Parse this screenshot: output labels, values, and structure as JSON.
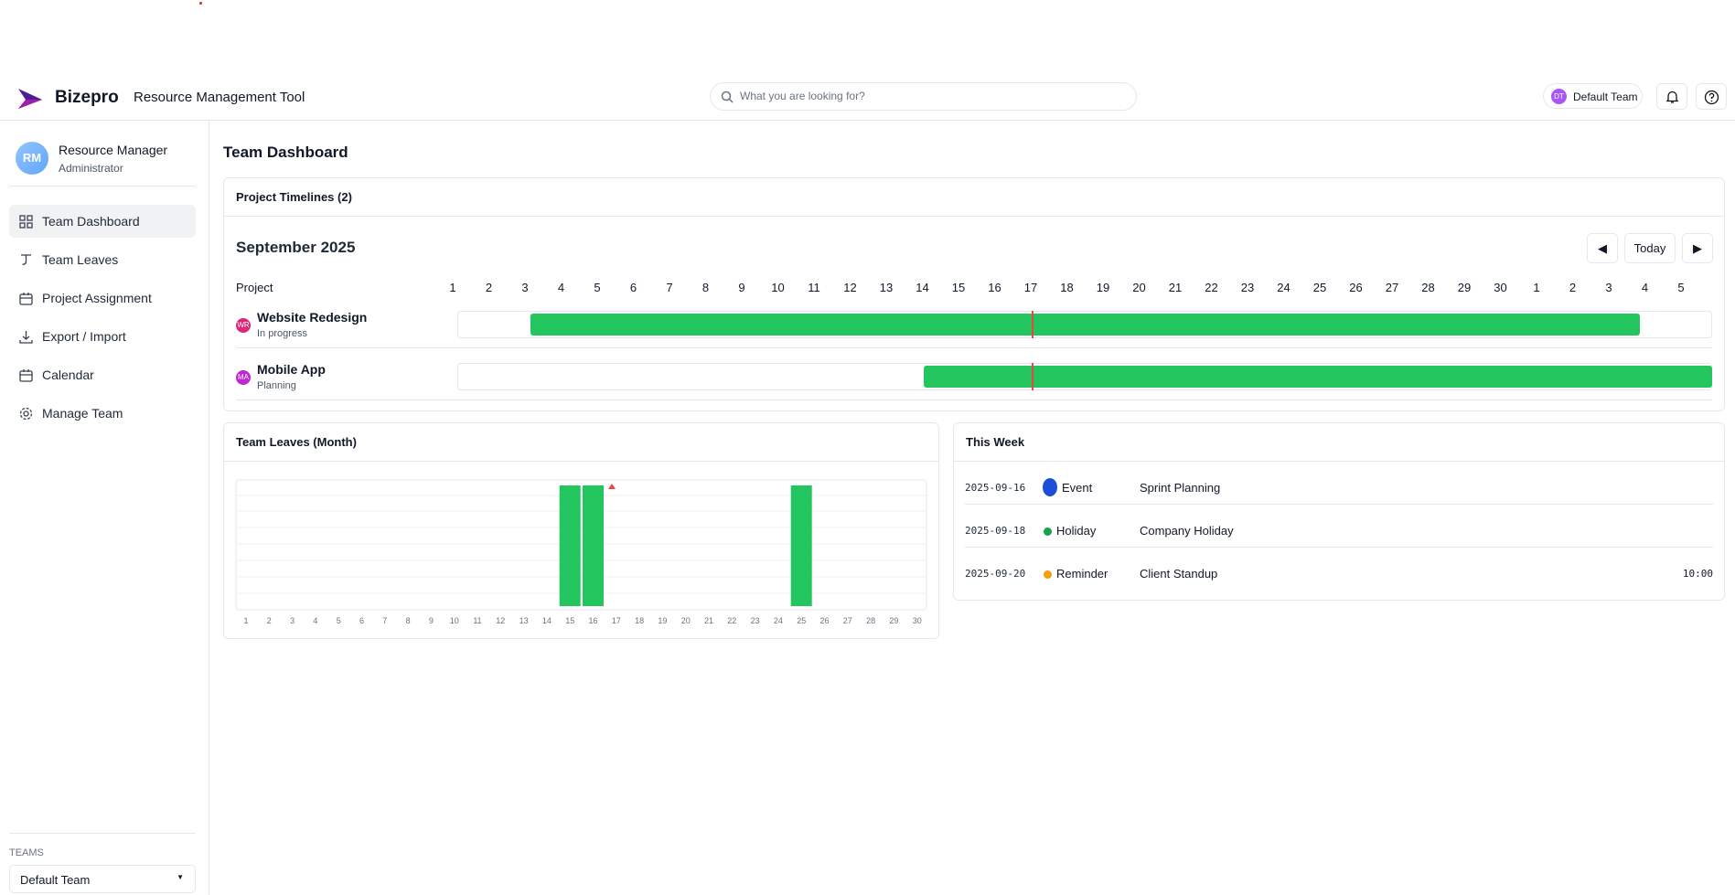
{
  "header": {
    "brand": "Bizepro",
    "app_title": "Resource Management Tool",
    "search_placeholder": "What you are looking for?",
    "team_initials": "DT",
    "team_name": "Default Team"
  },
  "sidebar": {
    "user": {
      "initials": "RM",
      "name": "Resource Manager",
      "role": "Administrator"
    },
    "nav": [
      "Team Dashboard",
      "Team Leaves",
      "Project Assignment",
      "Export / Import",
      "Calendar",
      "Manage Team"
    ],
    "teams_label": "TEAMS",
    "team_select": "Default Team"
  },
  "page_title": "Team Dashboard",
  "timelines": {
    "title": "Project Timelines (2)",
    "month": "September 2025",
    "today_button": "Today",
    "column_header": "Project",
    "days": [
      1,
      2,
      3,
      4,
      5,
      6,
      7,
      8,
      9,
      10,
      11,
      12,
      13,
      14,
      15,
      16,
      17,
      18,
      19,
      20,
      21,
      22,
      23,
      24,
      25,
      26,
      27,
      28,
      29,
      30,
      1,
      2,
      3,
      4,
      5
    ],
    "projects": [
      {
        "initials": "WR",
        "name": "Website Redesign",
        "status": "In progress"
      },
      {
        "initials": "MA",
        "name": "Mobile App",
        "status": "Planning"
      }
    ]
  },
  "team_leaves": {
    "title": "Team Leaves (Month)",
    "chart_data": {
      "type": "bar",
      "categories": [
        1,
        2,
        3,
        4,
        5,
        6,
        7,
        8,
        9,
        10,
        11,
        12,
        13,
        14,
        15,
        16,
        17,
        18,
        19,
        20,
        21,
        22,
        23,
        24,
        25,
        26,
        27,
        28,
        29,
        30
      ],
      "values": [
        0,
        0,
        0,
        0,
        0,
        0,
        0,
        0,
        0,
        0,
        0,
        0,
        0,
        0,
        1,
        1,
        0,
        0,
        0,
        0,
        0,
        0,
        0,
        0,
        1,
        0,
        0,
        0,
        0,
        0
      ],
      "ylim": [
        0,
        1
      ],
      "color": "#22c55e"
    }
  },
  "this_week": {
    "title": "This Week",
    "events": [
      {
        "date": "2025-09-16",
        "type": "Event",
        "title": "Sprint Planning",
        "color": "#1d4ed8"
      },
      {
        "date": "2025-09-18",
        "type": "Holiday",
        "title": "Company Holiday",
        "color": "#16a34a"
      },
      {
        "date": "2025-09-20",
        "type": "Reminder",
        "title": "Client Standup",
        "time": "10:00",
        "color": "#f59e0b"
      }
    ]
  }
}
